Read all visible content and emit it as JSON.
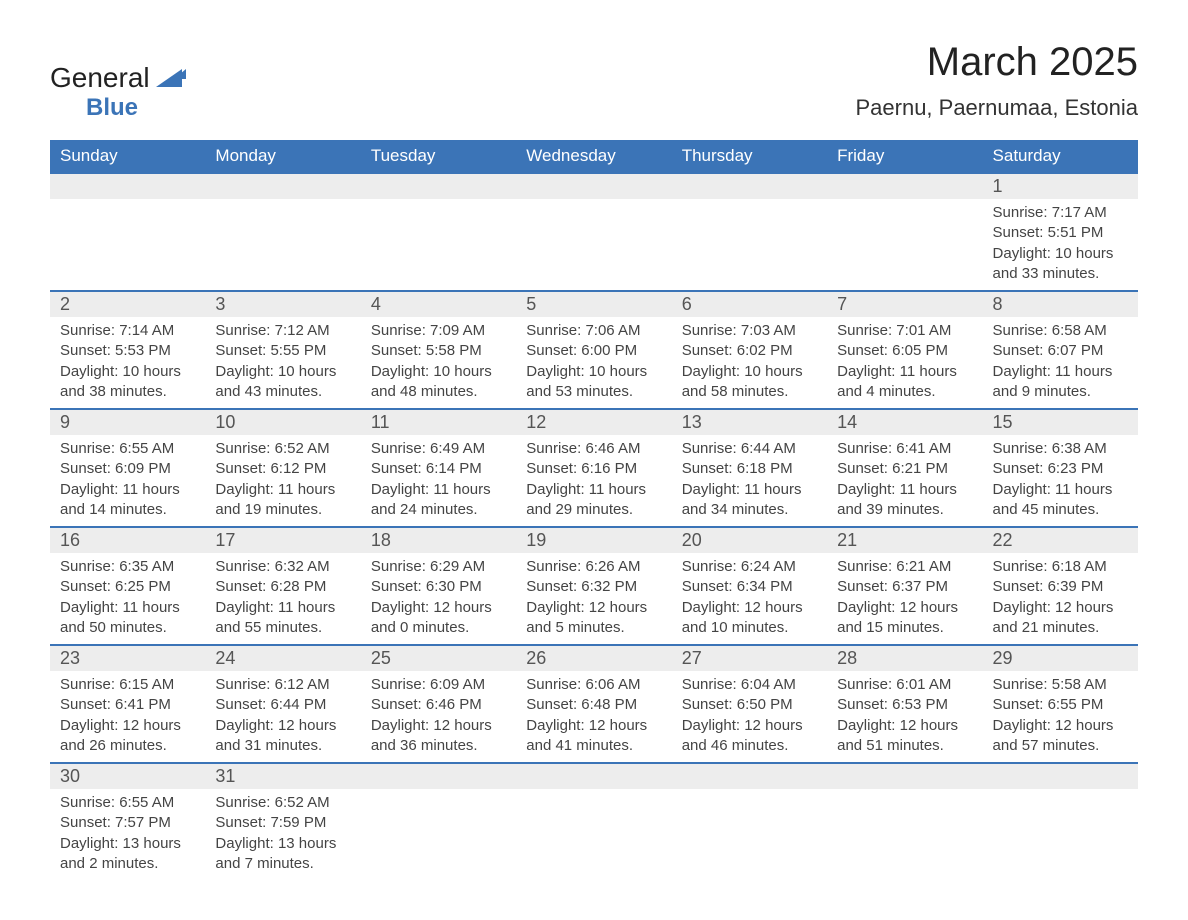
{
  "logo": {
    "text_a": "General",
    "text_b": "Blue"
  },
  "header": {
    "title": "March 2025",
    "location": "Paernu, Paernumaa, Estonia"
  },
  "colors": {
    "header_bg": "#3b74b7",
    "header_text": "#ffffff",
    "daynum_bg": "#ededed",
    "row_divider": "#3b74b7",
    "text": "#444444"
  },
  "weekdays": [
    "Sunday",
    "Monday",
    "Tuesday",
    "Wednesday",
    "Thursday",
    "Friday",
    "Saturday"
  ],
  "calendar": {
    "type": "table",
    "start_day_index": 6,
    "days": [
      {
        "n": 1,
        "sunrise": "7:17 AM",
        "sunset": "5:51 PM",
        "daylight": "10 hours and 33 minutes."
      },
      {
        "n": 2,
        "sunrise": "7:14 AM",
        "sunset": "5:53 PM",
        "daylight": "10 hours and 38 minutes."
      },
      {
        "n": 3,
        "sunrise": "7:12 AM",
        "sunset": "5:55 PM",
        "daylight": "10 hours and 43 minutes."
      },
      {
        "n": 4,
        "sunrise": "7:09 AM",
        "sunset": "5:58 PM",
        "daylight": "10 hours and 48 minutes."
      },
      {
        "n": 5,
        "sunrise": "7:06 AM",
        "sunset": "6:00 PM",
        "daylight": "10 hours and 53 minutes."
      },
      {
        "n": 6,
        "sunrise": "7:03 AM",
        "sunset": "6:02 PM",
        "daylight": "10 hours and 58 minutes."
      },
      {
        "n": 7,
        "sunrise": "7:01 AM",
        "sunset": "6:05 PM",
        "daylight": "11 hours and 4 minutes."
      },
      {
        "n": 8,
        "sunrise": "6:58 AM",
        "sunset": "6:07 PM",
        "daylight": "11 hours and 9 minutes."
      },
      {
        "n": 9,
        "sunrise": "6:55 AM",
        "sunset": "6:09 PM",
        "daylight": "11 hours and 14 minutes."
      },
      {
        "n": 10,
        "sunrise": "6:52 AM",
        "sunset": "6:12 PM",
        "daylight": "11 hours and 19 minutes."
      },
      {
        "n": 11,
        "sunrise": "6:49 AM",
        "sunset": "6:14 PM",
        "daylight": "11 hours and 24 minutes."
      },
      {
        "n": 12,
        "sunrise": "6:46 AM",
        "sunset": "6:16 PM",
        "daylight": "11 hours and 29 minutes."
      },
      {
        "n": 13,
        "sunrise": "6:44 AM",
        "sunset": "6:18 PM",
        "daylight": "11 hours and 34 minutes."
      },
      {
        "n": 14,
        "sunrise": "6:41 AM",
        "sunset": "6:21 PM",
        "daylight": "11 hours and 39 minutes."
      },
      {
        "n": 15,
        "sunrise": "6:38 AM",
        "sunset": "6:23 PM",
        "daylight": "11 hours and 45 minutes."
      },
      {
        "n": 16,
        "sunrise": "6:35 AM",
        "sunset": "6:25 PM",
        "daylight": "11 hours and 50 minutes."
      },
      {
        "n": 17,
        "sunrise": "6:32 AM",
        "sunset": "6:28 PM",
        "daylight": "11 hours and 55 minutes."
      },
      {
        "n": 18,
        "sunrise": "6:29 AM",
        "sunset": "6:30 PM",
        "daylight": "12 hours and 0 minutes."
      },
      {
        "n": 19,
        "sunrise": "6:26 AM",
        "sunset": "6:32 PM",
        "daylight": "12 hours and 5 minutes."
      },
      {
        "n": 20,
        "sunrise": "6:24 AM",
        "sunset": "6:34 PM",
        "daylight": "12 hours and 10 minutes."
      },
      {
        "n": 21,
        "sunrise": "6:21 AM",
        "sunset": "6:37 PM",
        "daylight": "12 hours and 15 minutes."
      },
      {
        "n": 22,
        "sunrise": "6:18 AM",
        "sunset": "6:39 PM",
        "daylight": "12 hours and 21 minutes."
      },
      {
        "n": 23,
        "sunrise": "6:15 AM",
        "sunset": "6:41 PM",
        "daylight": "12 hours and 26 minutes."
      },
      {
        "n": 24,
        "sunrise": "6:12 AM",
        "sunset": "6:44 PM",
        "daylight": "12 hours and 31 minutes."
      },
      {
        "n": 25,
        "sunrise": "6:09 AM",
        "sunset": "6:46 PM",
        "daylight": "12 hours and 36 minutes."
      },
      {
        "n": 26,
        "sunrise": "6:06 AM",
        "sunset": "6:48 PM",
        "daylight": "12 hours and 41 minutes."
      },
      {
        "n": 27,
        "sunrise": "6:04 AM",
        "sunset": "6:50 PM",
        "daylight": "12 hours and 46 minutes."
      },
      {
        "n": 28,
        "sunrise": "6:01 AM",
        "sunset": "6:53 PM",
        "daylight": "12 hours and 51 minutes."
      },
      {
        "n": 29,
        "sunrise": "5:58 AM",
        "sunset": "6:55 PM",
        "daylight": "12 hours and 57 minutes."
      },
      {
        "n": 30,
        "sunrise": "6:55 AM",
        "sunset": "7:57 PM",
        "daylight": "13 hours and 2 minutes."
      },
      {
        "n": 31,
        "sunrise": "6:52 AM",
        "sunset": "7:59 PM",
        "daylight": "13 hours and 7 minutes."
      }
    ]
  },
  "labels": {
    "sunrise": "Sunrise:",
    "sunset": "Sunset:",
    "daylight": "Daylight:"
  }
}
